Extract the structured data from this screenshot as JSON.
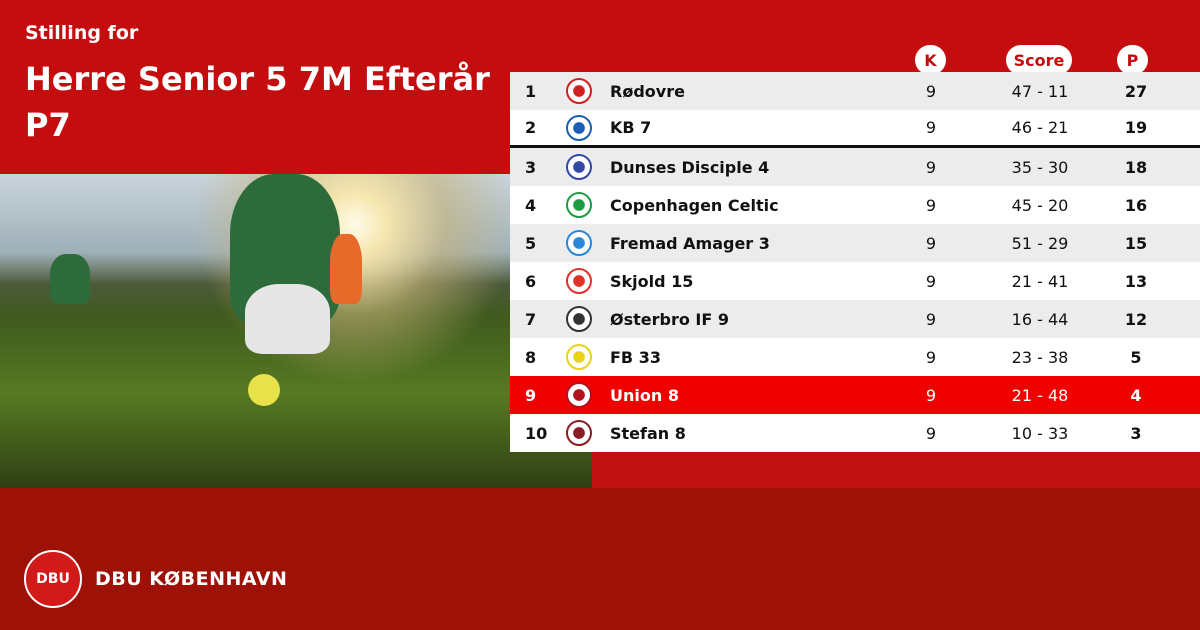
{
  "header": {
    "subtitle": "Stilling for",
    "title": "Herre Senior 5 7M Efterår P7"
  },
  "columns": {
    "k": "K",
    "score": "Score",
    "p": "P"
  },
  "rows": [
    {
      "pos": "1",
      "team": "Rødovre",
      "k": "9",
      "score": "47 - 11",
      "p": "27",
      "logo_color": "#d01f1f"
    },
    {
      "pos": "2",
      "team": "KB 7",
      "k": "9",
      "score": "46 - 21",
      "p": "19",
      "logo_color": "#1a5fb4"
    },
    {
      "pos": "3",
      "team": "Dunses Disciple 4",
      "k": "9",
      "score": "35 - 30",
      "p": "18",
      "logo_color": "#3347a8"
    },
    {
      "pos": "4",
      "team": "Copenhagen Celtic",
      "k": "9",
      "score": "45 - 20",
      "p": "16",
      "logo_color": "#1f9a45"
    },
    {
      "pos": "5",
      "team": "Fremad Amager 3",
      "k": "9",
      "score": "51 - 29",
      "p": "15",
      "logo_color": "#2a86d6"
    },
    {
      "pos": "6",
      "team": "Skjold 15",
      "k": "9",
      "score": "21 - 41",
      "p": "13",
      "logo_color": "#e0312b"
    },
    {
      "pos": "7",
      "team": "Østerbro IF 9",
      "k": "9",
      "score": "16 - 44",
      "p": "12",
      "logo_color": "#333333"
    },
    {
      "pos": "8",
      "team": "FB 33",
      "k": "9",
      "score": "23 - 38",
      "p": "5",
      "logo_color": "#e8d21a"
    },
    {
      "pos": "9",
      "team": "Union 8",
      "k": "9",
      "score": "21 - 48",
      "p": "4",
      "logo_color": "#b3121c",
      "highlight": true
    },
    {
      "pos": "10",
      "team": "Stefan 8",
      "k": "9",
      "score": "10 - 33",
      "p": "3",
      "logo_color": "#8a1c22"
    }
  ],
  "footer": {
    "brand": "DBU KØBENHAVN",
    "logo_text": "DBU"
  },
  "colors": {
    "brand_red": "#c40d0f",
    "footer_red": "#9d1107",
    "highlight": "#f10000"
  }
}
